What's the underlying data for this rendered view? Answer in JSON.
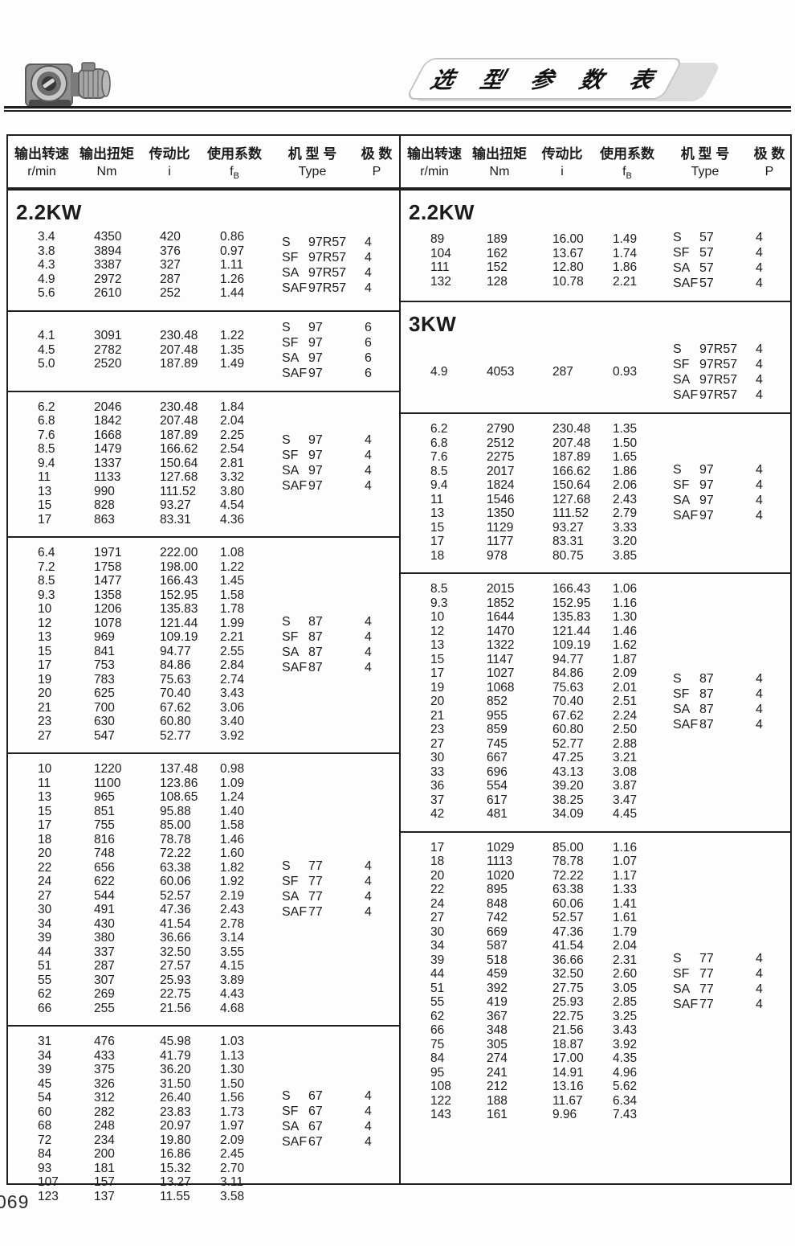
{
  "banner": {
    "title": "选 型 参 数 表"
  },
  "page_number": "069",
  "table_header": {
    "labels": [
      "输出转速",
      "输出扭矩",
      "传动比",
      "使用系数",
      "机 型 号",
      "极 数"
    ],
    "units": [
      "r/min",
      "Nm",
      "i",
      "fB",
      "Type",
      "P"
    ]
  },
  "columns": {
    "left": {
      "sections": [
        {
          "power": "2.2KW",
          "rows": [
            [
              "3.4",
              "4350",
              "420",
              "0.86"
            ],
            [
              "3.8",
              "3894",
              "376",
              "0.97"
            ],
            [
              "4.3",
              "3387",
              "327",
              "1.11"
            ],
            [
              "4.9",
              "2972",
              "287",
              "1.26"
            ],
            [
              "5.6",
              "2610",
              "252",
              "1.44"
            ]
          ],
          "types": [
            {
              "prefix": "S",
              "code": "97R57",
              "p": "4"
            },
            {
              "prefix": "SF",
              "code": "97R57",
              "p": "4"
            },
            {
              "prefix": "SA",
              "code": "97R57",
              "p": "4"
            },
            {
              "prefix": "SAF",
              "code": "97R57",
              "p": "4"
            }
          ]
        },
        {
          "power": null,
          "rows": [
            [
              "4.1",
              "3091",
              "230.48",
              "1.22"
            ],
            [
              "4.5",
              "2782",
              "207.48",
              "1.35"
            ],
            [
              "5.0",
              "2520",
              "187.89",
              "1.49"
            ]
          ],
          "types": [
            {
              "prefix": "S",
              "code": "97",
              "p": "6"
            },
            {
              "prefix": "SF",
              "code": "97",
              "p": "6"
            },
            {
              "prefix": "SA",
              "code": "97",
              "p": "6"
            },
            {
              "prefix": "SAF",
              "code": "97",
              "p": "6"
            }
          ]
        },
        {
          "power": null,
          "rows": [
            [
              "6.2",
              "2046",
              "230.48",
              "1.84"
            ],
            [
              "6.8",
              "1842",
              "207.48",
              "2.04"
            ],
            [
              "7.6",
              "1668",
              "187.89",
              "2.25"
            ],
            [
              "8.5",
              "1479",
              "166.62",
              "2.54"
            ],
            [
              "9.4",
              "1337",
              "150.64",
              "2.81"
            ],
            [
              "11",
              "1133",
              "127.68",
              "3.32"
            ],
            [
              "13",
              "990",
              "111.52",
              "3.80"
            ],
            [
              "15",
              "828",
              "93.27",
              "4.54"
            ],
            [
              "17",
              "863",
              "83.31",
              "4.36"
            ]
          ],
          "types": [
            {
              "prefix": "S",
              "code": "97",
              "p": "4"
            },
            {
              "prefix": "SF",
              "code": "97",
              "p": "4"
            },
            {
              "prefix": "SA",
              "code": "97",
              "p": "4"
            },
            {
              "prefix": "SAF",
              "code": "97",
              "p": "4"
            }
          ]
        },
        {
          "power": null,
          "rows": [
            [
              "6.4",
              "1971",
              "222.00",
              "1.08"
            ],
            [
              "7.2",
              "1758",
              "198.00",
              "1.22"
            ],
            [
              "8.5",
              "1477",
              "166.43",
              "1.45"
            ],
            [
              "9.3",
              "1358",
              "152.95",
              "1.58"
            ],
            [
              "10",
              "1206",
              "135.83",
              "1.78"
            ],
            [
              "12",
              "1078",
              "121.44",
              "1.99"
            ],
            [
              "13",
              "969",
              "109.19",
              "2.21"
            ],
            [
              "15",
              "841",
              "94.77",
              "2.55"
            ],
            [
              "17",
              "753",
              "84.86",
              "2.84"
            ],
            [
              "19",
              "783",
              "75.63",
              "2.74"
            ],
            [
              "20",
              "625",
              "70.40",
              "3.43"
            ],
            [
              "21",
              "700",
              "67.62",
              "3.06"
            ],
            [
              "23",
              "630",
              "60.80",
              "3.40"
            ],
            [
              "27",
              "547",
              "52.77",
              "3.92"
            ]
          ],
          "types": [
            {
              "prefix": "S",
              "code": "87",
              "p": "4"
            },
            {
              "prefix": "SF",
              "code": "87",
              "p": "4"
            },
            {
              "prefix": "SA",
              "code": "87",
              "p": "4"
            },
            {
              "prefix": "SAF",
              "code": "87",
              "p": "4"
            }
          ]
        },
        {
          "power": null,
          "rows": [
            [
              "10",
              "1220",
              "137.48",
              "0.98"
            ],
            [
              "11",
              "1100",
              "123.86",
              "1.09"
            ],
            [
              "13",
              "965",
              "108.65",
              "1.24"
            ],
            [
              "15",
              "851",
              "95.88",
              "1.40"
            ],
            [
              "17",
              "755",
              "85.00",
              "1.58"
            ],
            [
              "18",
              "816",
              "78.78",
              "1.46"
            ],
            [
              "20",
              "748",
              "72.22",
              "1.60"
            ],
            [
              "22",
              "656",
              "63.38",
              "1.82"
            ],
            [
              "24",
              "622",
              "60.06",
              "1.92"
            ],
            [
              "27",
              "544",
              "52.57",
              "2.19"
            ],
            [
              "30",
              "491",
              "47.36",
              "2.43"
            ],
            [
              "34",
              "430",
              "41.54",
              "2.78"
            ],
            [
              "39",
              "380",
              "36.66",
              "3.14"
            ],
            [
              "44",
              "337",
              "32.50",
              "3.55"
            ],
            [
              "51",
              "287",
              "27.57",
              "4.15"
            ],
            [
              "55",
              "307",
              "25.93",
              "3.89"
            ],
            [
              "62",
              "269",
              "22.75",
              "4.43"
            ],
            [
              "66",
              "255",
              "21.56",
              "4.68"
            ]
          ],
          "types": [
            {
              "prefix": "S",
              "code": "77",
              "p": "4"
            },
            {
              "prefix": "SF",
              "code": "77",
              "p": "4"
            },
            {
              "prefix": "SA",
              "code": "77",
              "p": "4"
            },
            {
              "prefix": "SAF",
              "code": "77",
              "p": "4"
            }
          ]
        },
        {
          "power": null,
          "rows": [
            [
              "31",
              "476",
              "45.98",
              "1.03"
            ],
            [
              "34",
              "433",
              "41.79",
              "1.13"
            ],
            [
              "39",
              "375",
              "36.20",
              "1.30"
            ],
            [
              "45",
              "326",
              "31.50",
              "1.50"
            ],
            [
              "54",
              "312",
              "26.40",
              "1.56"
            ],
            [
              "60",
              "282",
              "23.83",
              "1.73"
            ],
            [
              "68",
              "248",
              "20.97",
              "1.97"
            ],
            [
              "72",
              "234",
              "19.80",
              "2.09"
            ],
            [
              "84",
              "200",
              "16.86",
              "2.45"
            ],
            [
              "93",
              "181",
              "15.32",
              "2.70"
            ],
            [
              "107",
              "157",
              "13.27",
              "3.11"
            ],
            [
              "123",
              "137",
              "11.55",
              "3.58"
            ]
          ],
          "types": [
            {
              "prefix": "S",
              "code": "67",
              "p": "4"
            },
            {
              "prefix": "SF",
              "code": "67",
              "p": "4"
            },
            {
              "prefix": "SA",
              "code": "67",
              "p": "4"
            },
            {
              "prefix": "SAF",
              "code": "67",
              "p": "4"
            }
          ]
        }
      ]
    },
    "right": {
      "sections": [
        {
          "power": "2.2KW",
          "rows": [
            [
              "89",
              "189",
              "16.00",
              "1.49"
            ],
            [
              "104",
              "162",
              "13.67",
              "1.74"
            ],
            [
              "111",
              "152",
              "12.80",
              "1.86"
            ],
            [
              "132",
              "128",
              "10.78",
              "2.21"
            ]
          ],
          "types": [
            {
              "prefix": "S",
              "code": "57",
              "p": "4"
            },
            {
              "prefix": "SF",
              "code": "57",
              "p": "4"
            },
            {
              "prefix": "SA",
              "code": "57",
              "p": "4"
            },
            {
              "prefix": "SAF",
              "code": "57",
              "p": "4"
            }
          ]
        },
        {
          "power": "3KW",
          "rows": [
            [
              "4.9",
              "4053",
              "287",
              "0.93"
            ]
          ],
          "types": [
            {
              "prefix": "S",
              "code": "97R57",
              "p": "4"
            },
            {
              "prefix": "SF",
              "code": "97R57",
              "p": "4"
            },
            {
              "prefix": "SA",
              "code": "97R57",
              "p": "4"
            },
            {
              "prefix": "SAF",
              "code": "97R57",
              "p": "4"
            }
          ]
        },
        {
          "power": null,
          "rows": [
            [
              "6.2",
              "2790",
              "230.48",
              "1.35"
            ],
            [
              "6.8",
              "2512",
              "207.48",
              "1.50"
            ],
            [
              "7.6",
              "2275",
              "187.89",
              "1.65"
            ],
            [
              "8.5",
              "2017",
              "166.62",
              "1.86"
            ],
            [
              "9.4",
              "1824",
              "150.64",
              "2.06"
            ],
            [
              "11",
              "1546",
              "127.68",
              "2.43"
            ],
            [
              "13",
              "1350",
              "111.52",
              "2.79"
            ],
            [
              "15",
              "1129",
              "93.27",
              "3.33"
            ],
            [
              "17",
              "1177",
              "83.31",
              "3.20"
            ],
            [
              "18",
              "978",
              "80.75",
              "3.85"
            ]
          ],
          "types": [
            {
              "prefix": "S",
              "code": "97",
              "p": "4"
            },
            {
              "prefix": "SF",
              "code": "97",
              "p": "4"
            },
            {
              "prefix": "SA",
              "code": "97",
              "p": "4"
            },
            {
              "prefix": "SAF",
              "code": "97",
              "p": "4"
            }
          ]
        },
        {
          "power": null,
          "rows": [
            [
              "8.5",
              "2015",
              "166.43",
              "1.06"
            ],
            [
              "9.3",
              "1852",
              "152.95",
              "1.16"
            ],
            [
              "10",
              "1644",
              "135.83",
              "1.30"
            ],
            [
              "12",
              "1470",
              "121.44",
              "1.46"
            ],
            [
              "13",
              "1322",
              "109.19",
              "1.62"
            ],
            [
              "15",
              "1147",
              "94.77",
              "1.87"
            ],
            [
              "17",
              "1027",
              "84.86",
              "2.09"
            ],
            [
              "19",
              "1068",
              "75.63",
              "2.01"
            ],
            [
              "20",
              "852",
              "70.40",
              "2.51"
            ],
            [
              "21",
              "955",
              "67.62",
              "2.24"
            ],
            [
              "23",
              "859",
              "60.80",
              "2.50"
            ],
            [
              "27",
              "745",
              "52.77",
              "2.88"
            ],
            [
              "30",
              "667",
              "47.25",
              "3.21"
            ],
            [
              "33",
              "696",
              "43.13",
              "3.08"
            ],
            [
              "36",
              "554",
              "39.20",
              "3.87"
            ],
            [
              "37",
              "617",
              "38.25",
              "3.47"
            ],
            [
              "42",
              "481",
              "34.09",
              "4.45"
            ]
          ],
          "types": [
            {
              "prefix": "S",
              "code": "87",
              "p": "4"
            },
            {
              "prefix": "SF",
              "code": "87",
              "p": "4"
            },
            {
              "prefix": "SA",
              "code": "87",
              "p": "4"
            },
            {
              "prefix": "SAF",
              "code": "87",
              "p": "4"
            }
          ]
        },
        {
          "power": null,
          "rows": [
            [
              "17",
              "1029",
              "85.00",
              "1.16"
            ],
            [
              "18",
              "1113",
              "78.78",
              "1.07"
            ],
            [
              "20",
              "1020",
              "72.22",
              "1.17"
            ],
            [
              "22",
              "895",
              "63.38",
              "1.33"
            ],
            [
              "24",
              "848",
              "60.06",
              "1.41"
            ],
            [
              "27",
              "742",
              "52.57",
              "1.61"
            ],
            [
              "30",
              "669",
              "47.36",
              "1.79"
            ],
            [
              "34",
              "587",
              "41.54",
              "2.04"
            ],
            [
              "39",
              "518",
              "36.66",
              "2.31"
            ],
            [
              "44",
              "459",
              "32.50",
              "2.60"
            ],
            [
              "51",
              "392",
              "27.75",
              "3.05"
            ],
            [
              "55",
              "419",
              "25.93",
              "2.85"
            ],
            [
              "62",
              "367",
              "22.75",
              "3.25"
            ],
            [
              "66",
              "348",
              "21.56",
              "3.43"
            ],
            [
              "75",
              "305",
              "18.87",
              "3.92"
            ],
            [
              "84",
              "274",
              "17.00",
              "4.35"
            ],
            [
              "95",
              "241",
              "14.91",
              "4.96"
            ],
            [
              "108",
              "212",
              "13.16",
              "5.62"
            ],
            [
              "122",
              "188",
              "11.67",
              "6.34"
            ],
            [
              "143",
              "161",
              "9.96",
              "7.43"
            ]
          ],
          "types": [
            {
              "prefix": "S",
              "code": "77",
              "p": "4"
            },
            {
              "prefix": "SF",
              "code": "77",
              "p": "4"
            },
            {
              "prefix": "SA",
              "code": "77",
              "p": "4"
            },
            {
              "prefix": "SAF",
              "code": "77",
              "p": "4"
            }
          ]
        }
      ]
    }
  }
}
